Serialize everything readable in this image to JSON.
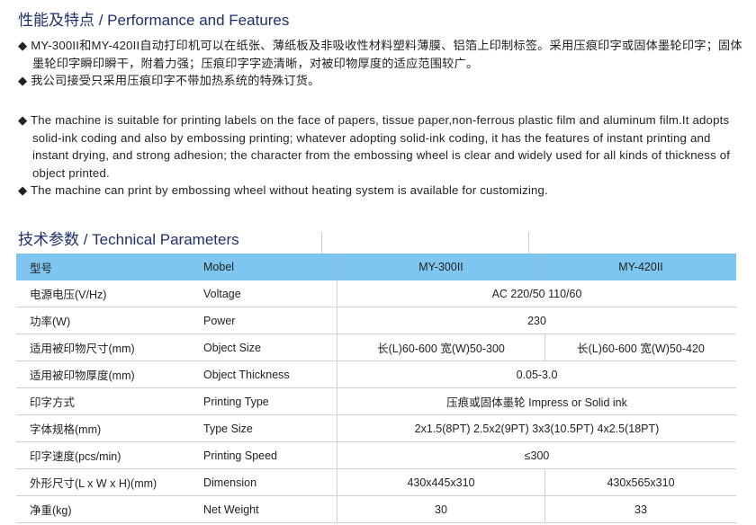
{
  "features": {
    "title": "性能及特点 / Performance and Features",
    "cn": [
      "MY-300II和MY-420II自动打印机可以在纸张、薄纸板及非吸收性材料塑料薄膜、铝箔上印制标签。采用压痕印字或固体墨轮印字；固体墨轮印字瞬印瞬干，附着力强；压痕印字字迹清晰，对被印物厚度的适应范围较广。",
      "我公司接受只采用压痕印字不带加热系统的特殊订货。"
    ],
    "en": [
      "The machine is suitable for printing labels on the face of papers, tissue paper,non-ferrous plastic film and aluminum film.It adopts solid-ink coding and also by embossing printing; whatever adopting solid-ink coding, it has the features of instant printing and instant drying, and strong adhesion; the character from the embossing wheel is clear and widely used for all kinds of thickness of object printed.",
      "The machine can print by embossing wheel without heating system is available for customizing."
    ],
    "bullet": "◆"
  },
  "params": {
    "title": "技术参数 / Technical Parameters",
    "header_color": "#7ec6ef",
    "header": [
      "型号",
      "Mobel",
      "MY-300II",
      "MY-420II"
    ],
    "rows": [
      [
        "电源电压(V/Hz)",
        "Voltage",
        "AC 220/50  110/60"
      ],
      [
        "功率(W)",
        "Power",
        "230"
      ],
      [
        "适用被印物尺寸(mm)",
        "Object Size",
        "长(L)60-600 宽(W)50-300",
        "长(L)60-600 宽(W)50-420"
      ],
      [
        "适用被印物厚度(mm)",
        "Object Thickness",
        "0.05-3.0"
      ],
      [
        "印字方式",
        "Printing Type",
        "压痕或固体墨轮 Impress or Solid ink"
      ],
      [
        "字体规格(mm)",
        "Type Size",
        "2x1.5(8PT) 2.5x2(9PT) 3x3(10.5PT) 4x2.5(18PT)"
      ],
      [
        "印字速度(pcs/min)",
        "Printing Speed",
        "≤300"
      ],
      [
        "外形尺寸(L x W x H)(mm)",
        "Dimension",
        "430x445x310",
        "430x565x310"
      ],
      [
        "净重(kg)",
        "Net Weight",
        "30",
        "33"
      ]
    ]
  }
}
